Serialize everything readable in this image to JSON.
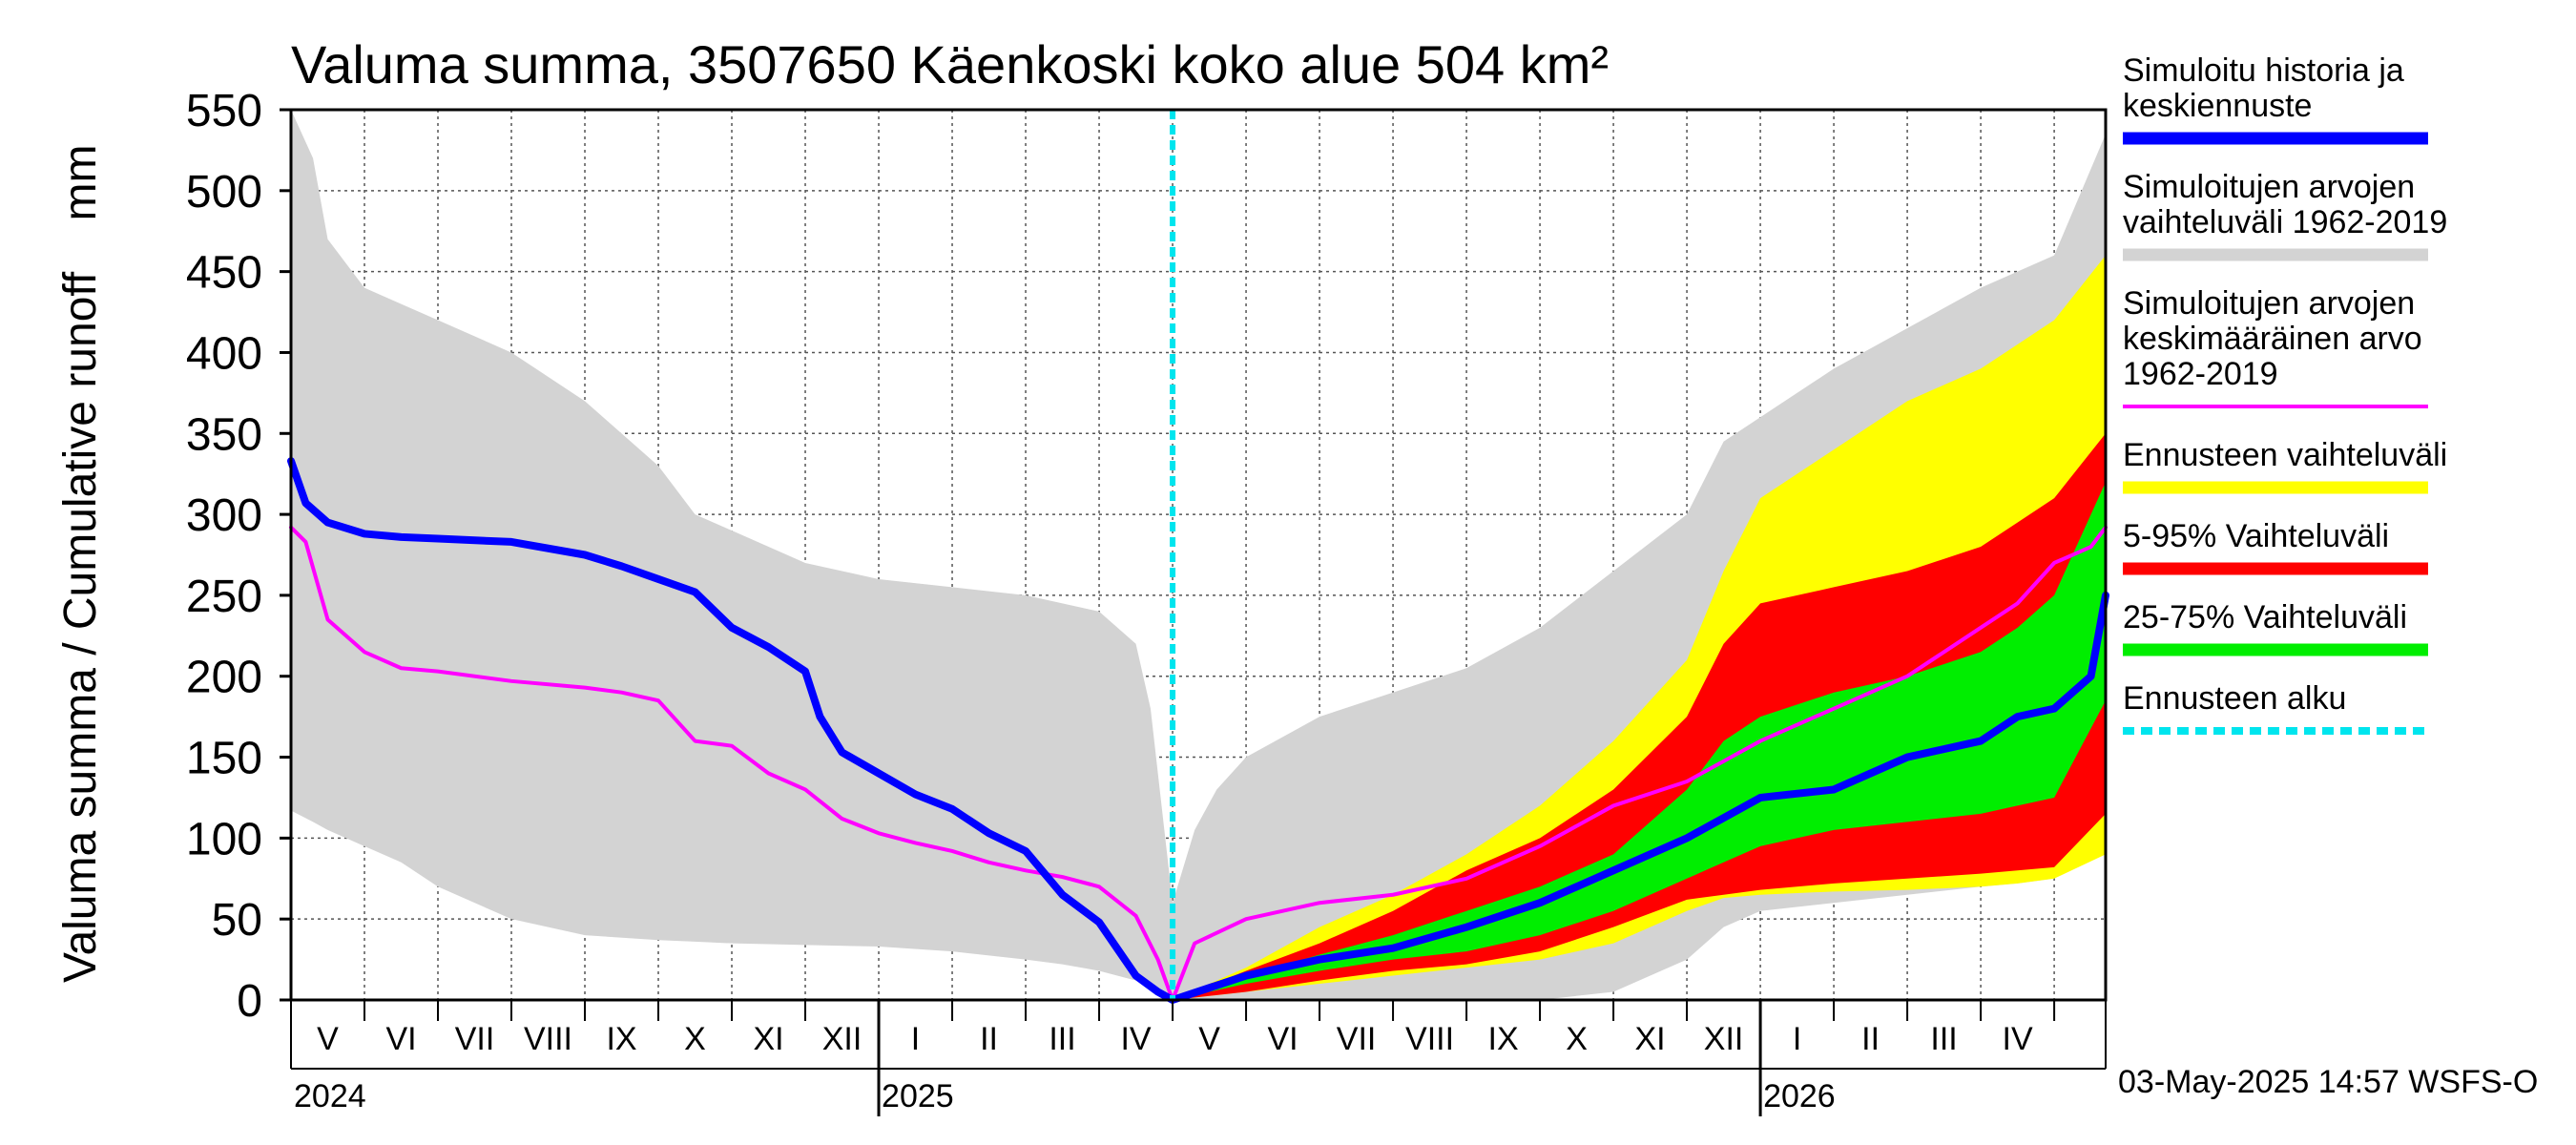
{
  "chart_data": {
    "type": "area",
    "title": "Valuma summa, 3507650 Käenkoski koko alue 504 km²",
    "ylabel": "Valuma summa / Cumulative runoff    mm",
    "ylim": [
      0,
      550
    ],
    "yticks": [
      0,
      50,
      100,
      150,
      200,
      250,
      300,
      350,
      400,
      450,
      500,
      550
    ],
    "xlim": [
      -12,
      12.7
    ],
    "month_labels": [
      {
        "label": "V",
        "x": -11.5
      },
      {
        "label": "VI",
        "x": -10.5
      },
      {
        "label": "VII",
        "x": -9.5
      },
      {
        "label": "VIII",
        "x": -8.5
      },
      {
        "label": "IX",
        "x": -7.5
      },
      {
        "label": "X",
        "x": -6.5
      },
      {
        "label": "XI",
        "x": -5.5
      },
      {
        "label": "XII",
        "x": -4.5
      },
      {
        "label": "I",
        "x": -3.5
      },
      {
        "label": "II",
        "x": -2.5
      },
      {
        "label": "III",
        "x": -1.5
      },
      {
        "label": "IV",
        "x": -0.5
      },
      {
        "label": "V",
        "x": 0.5
      },
      {
        "label": "VI",
        "x": 1.5
      },
      {
        "label": "VII",
        "x": 2.5
      },
      {
        "label": "VIII",
        "x": 3.5
      },
      {
        "label": "IX",
        "x": 4.5
      },
      {
        "label": "X",
        "x": 5.5
      },
      {
        "label": "XI",
        "x": 6.5
      },
      {
        "label": "XII",
        "x": 7.5
      },
      {
        "label": "I",
        "x": 8.5
      },
      {
        "label": "II",
        "x": 9.5
      },
      {
        "label": "III",
        "x": 10.5
      },
      {
        "label": "IV",
        "x": 11.5
      }
    ],
    "year_labels": [
      {
        "label": "2024",
        "x": -12
      },
      {
        "label": "2025",
        "x": -4
      },
      {
        "label": "2026",
        "x": 8
      }
    ],
    "year_boundaries": [
      -4,
      8
    ],
    "forecast_start": 0,
    "timestamp": "03-May-2025 14:57 WSFS-O",
    "series": [
      {
        "name": "Simuloitujen arvojen vaihteluväli 1962-2019",
        "kind": "band",
        "color": "#d3d3d3",
        "x": [
          -12,
          -11.7,
          -11.5,
          -11,
          -10.5,
          -10,
          -9,
          -8,
          -7,
          -6.5,
          -6,
          -5,
          -4,
          -3,
          -2,
          -1.5,
          -1,
          -0.5,
          -0.3,
          0,
          0.3,
          0.6,
          1,
          2,
          3,
          4,
          5,
          6,
          7,
          7.5,
          8,
          9,
          10,
          11,
          11.5,
          12,
          12.7
        ],
        "upper": [
          550,
          520,
          470,
          440,
          430,
          420,
          400,
          370,
          330,
          300,
          290,
          270,
          260,
          255,
          250,
          245,
          240,
          220,
          180,
          60,
          105,
          130,
          150,
          175,
          190,
          205,
          230,
          265,
          300,
          345,
          360,
          390,
          415,
          440,
          450,
          460,
          535
        ],
        "lower": [
          117,
          110,
          105,
          95,
          85,
          70,
          50,
          40,
          37,
          36,
          35,
          34,
          33,
          30,
          25,
          22,
          18,
          12,
          8,
          0,
          0,
          0,
          0,
          0,
          0,
          0,
          0,
          5,
          25,
          45,
          55,
          60,
          65,
          70,
          72,
          75,
          100
        ]
      },
      {
        "name": "Ennusteen vaihteluväli",
        "kind": "band",
        "color": "#ffff00",
        "x": [
          0,
          1,
          2,
          3,
          4,
          5,
          6,
          7,
          7.5,
          8,
          9,
          10,
          11,
          11.5,
          12,
          12.7
        ],
        "upper": [
          0,
          20,
          45,
          65,
          90,
          120,
          160,
          210,
          265,
          310,
          340,
          370,
          390,
          405,
          420,
          460
        ],
        "lower": [
          0,
          5,
          10,
          15,
          20,
          25,
          35,
          55,
          63,
          65,
          67,
          68,
          70,
          72,
          75,
          90
        ]
      },
      {
        "name": "5-95% Vaihteluväli",
        "kind": "band",
        "color": "#ff0000",
        "x": [
          0,
          1,
          2,
          3,
          4,
          5,
          6,
          7,
          7.5,
          8,
          9,
          10,
          11,
          11.5,
          12,
          12.7
        ],
        "upper": [
          0,
          18,
          35,
          55,
          80,
          100,
          130,
          175,
          220,
          245,
          255,
          265,
          280,
          295,
          310,
          350
        ],
        "lower": [
          0,
          5,
          12,
          18,
          22,
          30,
          45,
          62,
          65,
          68,
          72,
          75,
          78,
          80,
          82,
          115
        ]
      },
      {
        "name": "25-75% Vaihteluväli",
        "kind": "band",
        "color": "#00ee00",
        "x": [
          0,
          1,
          2,
          3,
          4,
          5,
          6,
          7,
          7.5,
          8,
          9,
          10,
          11,
          11.5,
          12,
          12.7
        ],
        "upper": [
          0,
          15,
          28,
          40,
          55,
          70,
          90,
          130,
          160,
          175,
          190,
          200,
          215,
          230,
          250,
          320
        ],
        "lower": [
          0,
          10,
          18,
          25,
          30,
          40,
          55,
          75,
          85,
          95,
          105,
          110,
          115,
          120,
          125,
          185
        ]
      },
      {
        "name": "Simuloitujen arvojen keskimääräinen arvo 1962-2019",
        "kind": "line",
        "color": "#ff00ff",
        "width": 4,
        "x": [
          -12,
          -11.8,
          -11.5,
          -11,
          -10.5,
          -10,
          -9,
          -8,
          -7.5,
          -7,
          -6.5,
          -6,
          -5.5,
          -5,
          -4.5,
          -4,
          -3.5,
          -3,
          -2.5,
          -2,
          -1.5,
          -1,
          -0.5,
          -0.2,
          0,
          0.3,
          1,
          1.5,
          2,
          3,
          4,
          5,
          6,
          7,
          8,
          9,
          10,
          11,
          11.5,
          12,
          12.5,
          12.7
        ],
        "values": [
          292,
          283,
          235,
          215,
          205,
          203,
          197,
          193,
          190,
          185,
          160,
          157,
          140,
          130,
          112,
          103,
          97,
          92,
          85,
          80,
          76,
          70,
          52,
          25,
          0,
          35,
          50,
          55,
          60,
          65,
          75,
          95,
          120,
          135,
          160,
          180,
          200,
          230,
          245,
          270,
          280,
          292
        ]
      },
      {
        "name": "Simuloitu historia ja keskiennuste",
        "kind": "line",
        "color": "#0000ff",
        "width": 8,
        "x": [
          -12,
          -11.8,
          -11.5,
          -11,
          -10.5,
          -10,
          -9,
          -8,
          -7.5,
          -7,
          -6.5,
          -6,
          -5.5,
          -5,
          -4.8,
          -4.5,
          -4,
          -3.5,
          -3,
          -2.5,
          -2,
          -1.5,
          -1,
          -0.5,
          -0.2,
          0,
          1,
          2,
          3,
          4,
          5,
          6,
          7,
          8,
          9,
          10,
          11,
          11.5,
          12,
          12.5,
          12.7
        ],
        "values": [
          333,
          307,
          295,
          288,
          286,
          285,
          283,
          275,
          268,
          260,
          252,
          230,
          218,
          203,
          175,
          153,
          140,
          127,
          118,
          103,
          92,
          65,
          48,
          15,
          5,
          0,
          15,
          25,
          32,
          45,
          60,
          80,
          100,
          125,
          130,
          150,
          160,
          175,
          180,
          200,
          250
        ]
      },
      {
        "name": "Ennusteen alku",
        "kind": "vline",
        "color": "#00e5ee",
        "width": 6
      }
    ],
    "legend": [
      {
        "label_lines": [
          "Simuloitu historia ja",
          "keskiennuste"
        ],
        "color": "#0000ff",
        "style": "thick"
      },
      {
        "label_lines": [
          "Simuloitujen arvojen",
          "vaihteluväli 1962-2019"
        ],
        "color": "#d3d3d3",
        "style": "thick"
      },
      {
        "label_lines": [
          "Simuloitujen arvojen",
          "keskimääräinen arvo",
          "   1962-2019"
        ],
        "color": "#ff00ff",
        "style": "thin"
      },
      {
        "label_lines": [
          "Ennusteen vaihteluväli"
        ],
        "color": "#ffff00",
        "style": "thick"
      },
      {
        "label_lines": [
          "5-95% Vaihteluväli"
        ],
        "color": "#ff0000",
        "style": "thick"
      },
      {
        "label_lines": [
          "25-75% Vaihteluväli"
        ],
        "color": "#00ee00",
        "style": "thick"
      },
      {
        "label_lines": [
          "Ennusteen alku"
        ],
        "color": "#00e5ee",
        "style": "dashed"
      }
    ],
    "legend_position": "right"
  }
}
